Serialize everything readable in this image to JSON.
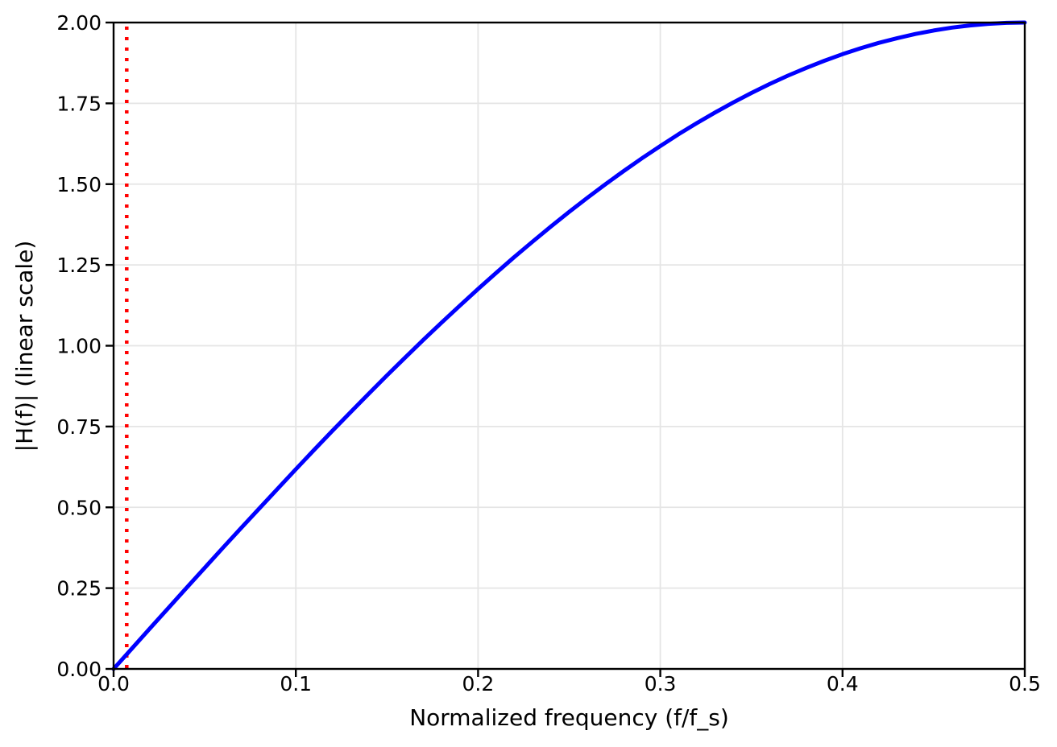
{
  "chart_data": {
    "type": "line",
    "title": "",
    "xlabel": "Normalized frequency (f/f_s)",
    "ylabel": "|H(f)| (linear scale)",
    "xlim": [
      0.0,
      0.5
    ],
    "ylim": [
      0.0,
      2.0
    ],
    "xticks": [
      0.0,
      0.1,
      0.2,
      0.3,
      0.4,
      0.5
    ],
    "xtick_labels": [
      "0.0",
      "0.1",
      "0.2",
      "0.3",
      "0.4",
      "0.5"
    ],
    "yticks": [
      0.0,
      0.25,
      0.5,
      0.75,
      1.0,
      1.25,
      1.5,
      1.75,
      2.0
    ],
    "ytick_labels": [
      "0.00",
      "0.25",
      "0.50",
      "0.75",
      "1.00",
      "1.25",
      "1.50",
      "1.75",
      "2.00"
    ],
    "grid": true,
    "legend": "none",
    "series": [
      {
        "name": "|H(f)|",
        "color": "#0000ff",
        "style": "solid",
        "line_width": 5,
        "x": [
          0.0,
          0.01,
          0.02,
          0.03,
          0.04,
          0.05,
          0.06,
          0.07,
          0.08,
          0.09,
          0.1,
          0.11,
          0.12,
          0.13,
          0.14,
          0.15,
          0.16,
          0.17,
          0.18,
          0.19,
          0.2,
          0.21,
          0.22,
          0.23,
          0.24,
          0.25,
          0.26,
          0.27,
          0.28,
          0.29,
          0.3,
          0.31,
          0.32,
          0.33,
          0.34,
          0.35,
          0.36,
          0.37,
          0.38,
          0.39,
          0.4,
          0.41,
          0.42,
          0.43,
          0.44,
          0.45,
          0.46,
          0.47,
          0.48,
          0.49,
          0.5
        ],
        "y": [
          0.0,
          0.0628,
          0.1256,
          0.1882,
          0.2507,
          0.3129,
          0.3748,
          0.4362,
          0.497,
          0.5573,
          0.618,
          0.6775,
          0.7362,
          0.7943,
          0.8516,
          0.908,
          0.9635,
          1.0181,
          1.0717,
          1.1241,
          1.1756,
          1.2257,
          1.2749,
          1.3226,
          1.3691,
          1.4142,
          1.4579,
          1.5002,
          1.541,
          1.5803,
          1.618,
          1.6542,
          1.6887,
          1.7215,
          1.7526,
          1.782,
          1.8097,
          1.8355,
          1.8595,
          1.8818,
          1.9021,
          1.9206,
          1.9372,
          1.9518,
          1.9646,
          1.9754,
          1.9842,
          1.9911,
          1.996,
          1.999,
          2.0
        ]
      }
    ],
    "vlines": [
      {
        "x": 0.0072,
        "color": "#ff0000",
        "style": "dotted",
        "line_width": 4.5
      }
    ],
    "colors": {
      "background": "#ffffff",
      "grid": "#e5e5e5",
      "spine": "#000000",
      "tick_label": "#000000"
    },
    "tick_font_size": 25,
    "label_font_size": 28
  }
}
